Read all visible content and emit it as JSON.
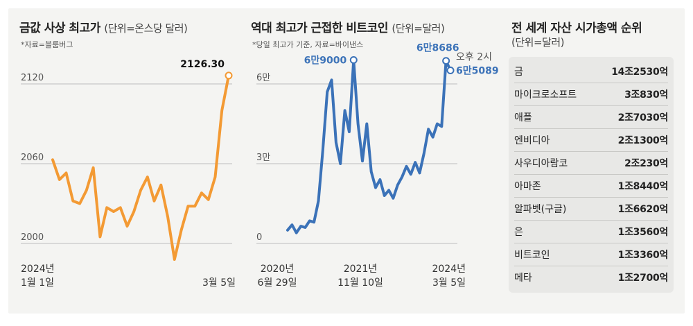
{
  "panel1": {
    "title": "금값 사상 최고가",
    "unit": "(단위=온스당 달러)",
    "source": "*자료=블룸버그",
    "x_start_line1": "2024년",
    "x_start_line2": "1월 1일",
    "x_end": "3월 5일"
  },
  "panel2": {
    "title": "역대 최고가 근접한 비트코인",
    "unit": "(단위=달러)",
    "source": "*당일 최고가 기준, 자료=바이낸스",
    "x1_line1": "2020년",
    "x1_line2": "6월 29일",
    "x2_line1": "2021년",
    "x2_line2": "11월 10일",
    "x3_line1": "2024년",
    "x3_line2": "3월 5일"
  },
  "panel3": {
    "title": "전 세계 자산 시가총액 순위",
    "unit": "(단위=달러)",
    "rows": [
      {
        "name": "금",
        "value": "14조2530억"
      },
      {
        "name": "마이크로소프트",
        "value": "3조830억"
      },
      {
        "name": "애플",
        "value": "2조7030억"
      },
      {
        "name": "엔비디아",
        "value": "2조1300억"
      },
      {
        "name": "사우디아람코",
        "value": "2조230억"
      },
      {
        "name": "아마존",
        "value": "1조8440억"
      },
      {
        "name": "알파벳(구글)",
        "value": "1조6620억"
      },
      {
        "name": "은",
        "value": "1조3560억"
      },
      {
        "name": "비트코인",
        "value": "1조3360억"
      },
      {
        "name": "메타",
        "value": "1조2700억"
      }
    ]
  },
  "chart_data": [
    {
      "type": "line",
      "title": "금값 사상 최고가",
      "ylabel": "온스당 달러",
      "y_ticks": [
        "2120",
        "2060",
        "2000"
      ],
      "y_tick_values": [
        2120,
        2060,
        2000
      ],
      "ylim": [
        2000,
        2120
      ],
      "x_start": "2024년 1월 1일",
      "x_end": "3월 5일",
      "values": [
        2063,
        2048,
        2053,
        2032,
        2030,
        2040,
        2057,
        2005,
        2027,
        2024,
        2027,
        2013,
        2024,
        2040,
        2050,
        2032,
        2044,
        2020,
        1988,
        2010,
        2028,
        2028,
        2038,
        2033,
        2050,
        2100,
        2126.3
      ],
      "annotation": "2126.30",
      "color": "#f39a34"
    },
    {
      "type": "line",
      "title": "역대 최고가 근접한 비트코인",
      "ylabel": "달러",
      "y_ticks": [
        "6만",
        "3만",
        "0"
      ],
      "y_tick_values": [
        60000,
        30000,
        0
      ],
      "ylim": [
        0,
        60000
      ],
      "x_ticks": [
        "2020년 6월 29일",
        "2021년 11월 10일",
        "2024년 3월 5일"
      ],
      "values": [
        5000,
        7000,
        4000,
        6500,
        6000,
        8500,
        8000,
        16000,
        35000,
        57000,
        61500,
        38000,
        30000,
        50000,
        42000,
        69000,
        45000,
        31000,
        45000,
        27000,
        21000,
        24000,
        18000,
        20000,
        17000,
        22000,
        25000,
        29000,
        26000,
        30500,
        26500,
        34000,
        43000,
        40000,
        45000,
        44000,
        68686,
        65089
      ],
      "annotations": [
        "6만9000",
        "6만8686",
        "6만5089"
      ],
      "latest_time_label": "오후 2시",
      "color": "#3b72b8"
    }
  ],
  "colors": {
    "gold": "#f39a34",
    "bitcoin": "#3b72b8",
    "panel_bg": "#f4f4f2",
    "rank_bg": "#e8e8e6"
  }
}
